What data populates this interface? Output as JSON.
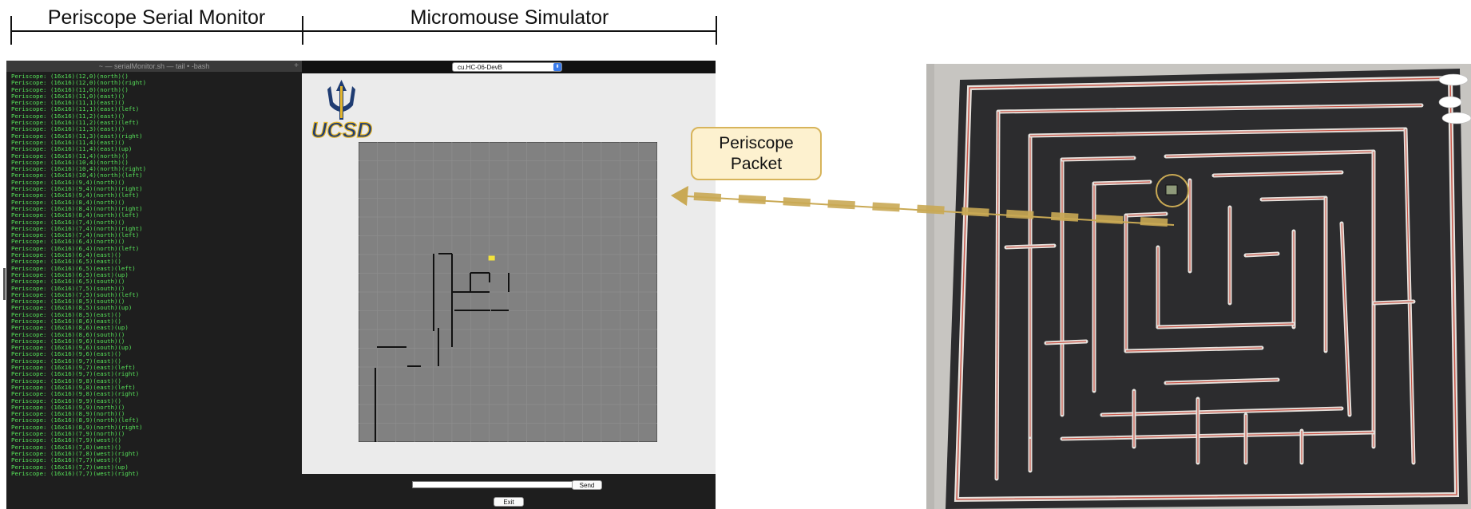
{
  "header": {
    "left_label": "Periscope Serial Monitor",
    "right_label": "Micromouse Simulator"
  },
  "terminal": {
    "title": "~ — serialMonitor.sh — tail • -bash",
    "plus": "+",
    "text_color": "#57e35a",
    "lines": [
      "Periscope: (16x16)(12,0)(north)()",
      "Periscope: (16x16)(12,0)(north)(right)",
      "Periscope: (16x16)(11,0)(north)()",
      "Periscope: (16x16)(11,0)(east)()",
      "Periscope: (16x16)(11,1)(east)()",
      "Periscope: (16x16)(11,1)(east)(left)",
      "Periscope: (16x16)(11,2)(east)()",
      "Periscope: (16x16)(11,2)(east)(left)",
      "Periscope: (16x16)(11,3)(east)()",
      "Periscope: (16x16)(11,3)(east)(right)",
      "Periscope: (16x16)(11,4)(east)()",
      "Periscope: (16x16)(11,4)(east)(up)",
      "Periscope: (16x16)(11,4)(north)()",
      "Periscope: (16x16)(10,4)(north)()",
      "Periscope: (16x16)(10,4)(north)(right)",
      "Periscope: (16x16)(10,4)(north)(left)",
      "Periscope: (16x16)(9,4)(north)()",
      "Periscope: (16x16)(9,4)(north)(right)",
      "Periscope: (16x16)(9,4)(north)(left)",
      "Periscope: (16x16)(8,4)(north)()",
      "Periscope: (16x16)(8,4)(north)(right)",
      "Periscope: (16x16)(8,4)(north)(left)",
      "Periscope: (16x16)(7,4)(north)()",
      "Periscope: (16x16)(7,4)(north)(right)",
      "Periscope: (16x16)(7,4)(north)(left)",
      "Periscope: (16x16)(6,4)(north)()",
      "Periscope: (16x16)(6,4)(north)(left)",
      "Periscope: (16x16)(6,4)(east)()",
      "Periscope: (16x16)(6,5)(east)()",
      "Periscope: (16x16)(6,5)(east)(left)",
      "Periscope: (16x16)(6,5)(east)(up)",
      "Periscope: (16x16)(6,5)(south)()",
      "Periscope: (16x16)(7,5)(south)()",
      "Periscope: (16x16)(7,5)(south)(left)",
      "Periscope: (16x16)(8,5)(south)()",
      "Periscope: (16x16)(8,5)(south)(up)",
      "Periscope: (16x16)(8,5)(east)()",
      "Periscope: (16x16)(8,6)(east)()",
      "Periscope: (16x16)(8,6)(east)(up)",
      "Periscope: (16x16)(8,6)(south)()",
      "Periscope: (16x16)(9,6)(south)()",
      "Periscope: (16x16)(9,6)(south)(up)",
      "Periscope: (16x16)(9,6)(east)()",
      "Periscope: (16x16)(9,7)(east)()",
      "Periscope: (16x16)(9,7)(east)(left)",
      "Periscope: (16x16)(9,7)(east)(right)",
      "Periscope: (16x16)(9,8)(east)()",
      "Periscope: (16x16)(9,8)(east)(left)",
      "Periscope: (16x16)(9,8)(east)(right)",
      "Periscope: (16x16)(9,9)(east)()",
      "Periscope: (16x16)(9,9)(north)()",
      "Periscope: (16x16)(8,9)(north)()",
      "Periscope: (16x16)(8,9)(north)(left)",
      "Periscope: (16x16)(8,9)(north)(right)",
      "Periscope: (16x16)(7,9)(north)()",
      "Periscope: (16x16)(7,9)(west)()",
      "Periscope: (16x16)(7,8)(west)()",
      "Periscope: (16x16)(7,8)(west)(right)",
      "Periscope: (16x16)(7,7)(west)()",
      "Periscope: (16x16)(7,7)(west)(up)",
      "Periscope: (16x16)(7,7)(west)(right)"
    ]
  },
  "simulator": {
    "port_select": "cu.HC-06-DevB",
    "port_arrow": "⬍",
    "logo_text": "UCSD",
    "send_label": "Send",
    "exit_label": "Exit",
    "command_value": "",
    "maze_size": 16,
    "maze_background": "#818181",
    "grid_color": "#8e8e8e",
    "wall_color": "#111111",
    "mouse_color": "#f2e23c",
    "mouse_cell": [
      7,
      7
    ]
  },
  "callout": {
    "text": "Periscope\nPacket",
    "fill": "#fdf1cf",
    "border": "#d7b45b"
  },
  "arrow": {
    "color": "#c9a954"
  },
  "photo": {
    "floor_color": "#c7c5c1",
    "board_color": "#2c2c2e",
    "wall_color": "#e6e1dc",
    "wall_edge_color": "#c9574a"
  }
}
